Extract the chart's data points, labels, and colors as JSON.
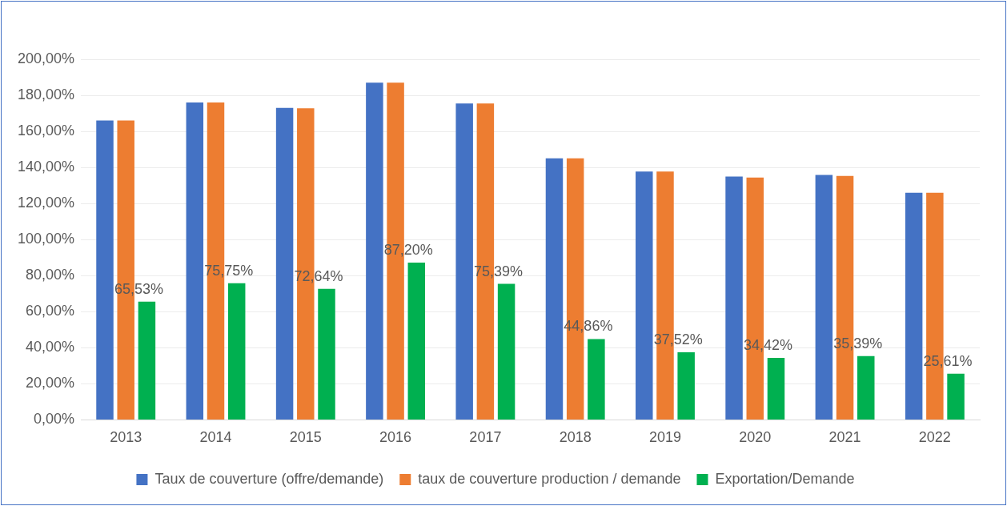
{
  "chart_data": {
    "type": "bar",
    "categories": [
      "2013",
      "2014",
      "2015",
      "2016",
      "2017",
      "2018",
      "2019",
      "2020",
      "2021",
      "2022"
    ],
    "series": [
      {
        "name": "Taux de couverture (offre/demande)",
        "color": "#4472c4",
        "values": [
          166,
          176,
          173,
          187,
          175.5,
          145,
          137.7,
          134.9,
          135.8,
          126
        ]
      },
      {
        "name": "taux de couverture production / demande",
        "color": "#ed7d31",
        "values": [
          166,
          176,
          172.8,
          187,
          175.5,
          145,
          137.7,
          134.4,
          135.3,
          126
        ]
      },
      {
        "name": "Exportation/Demande",
        "color": "#00b050",
        "values": [
          65.53,
          75.75,
          72.64,
          87.2,
          75.39,
          44.86,
          37.52,
          34.42,
          35.39,
          25.61
        ],
        "value_labels": [
          "65,53%",
          "75,75%",
          "72,64%",
          "87,20%",
          "75,39%",
          "44,86%",
          "37,52%",
          "34,42%",
          "35,39%",
          "25,61%"
        ]
      }
    ],
    "ylim": [
      0,
      200
    ],
    "yticks": [
      {
        "value": 0,
        "label": "0,00%"
      },
      {
        "value": 20,
        "label": "20,00%"
      },
      {
        "value": 40,
        "label": "40,00%"
      },
      {
        "value": 60,
        "label": "60,00%"
      },
      {
        "value": 80,
        "label": "80,00%"
      },
      {
        "value": 100,
        "label": "100,00%"
      },
      {
        "value": 120,
        "label": "120,00%"
      },
      {
        "value": 140,
        "label": "140,00%"
      },
      {
        "value": 160,
        "label": "160,00%"
      },
      {
        "value": 180,
        "label": "180,00%"
      },
      {
        "value": 200,
        "label": "200,00%"
      }
    ],
    "grid": "y",
    "legend": "bottom"
  }
}
